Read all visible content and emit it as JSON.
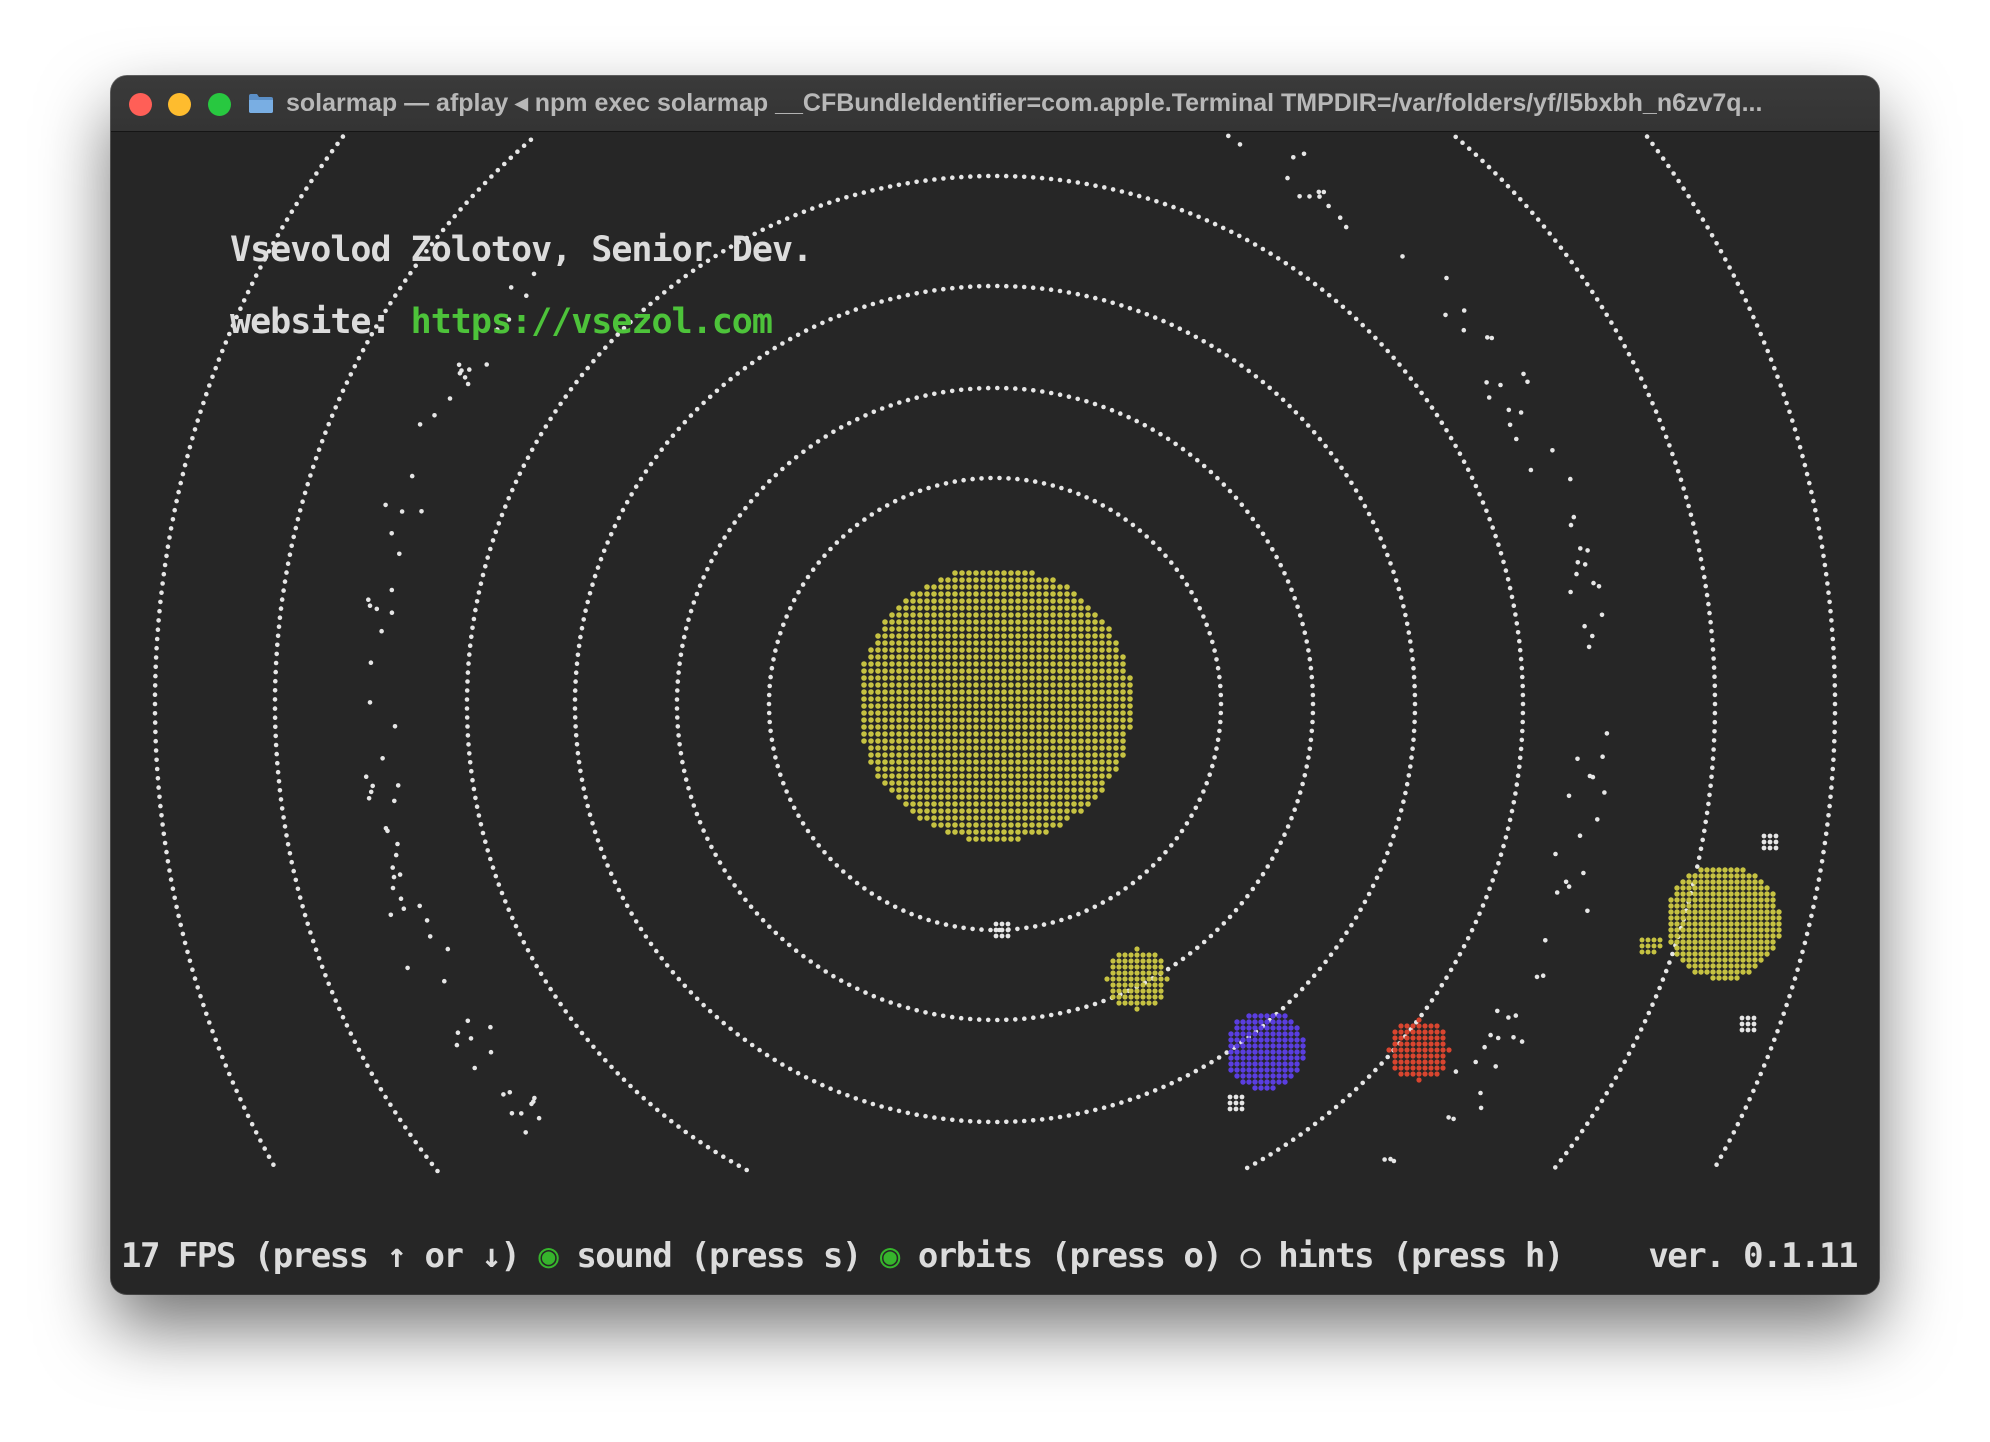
{
  "window": {
    "title": "solarmap — afplay ◂ npm exec solarmap __CFBundleIdentifier=com.apple.Terminal TMPDIR=/var/folders/yf/l5bxbh_n6zv7q..."
  },
  "credits": {
    "name": "Vsevolod Zolotov, Senior Dev.",
    "website_label": "website: ",
    "website_url": "https://vsezol.com"
  },
  "status": {
    "fps": "17 FPS (press ↑ or ↓)",
    "sound_indicator": "◉",
    "sound": "sound (press s)",
    "orbits_indicator": "◉",
    "orbits": "orbits (press o)",
    "hints_indicator": "○",
    "hints": "hints (press h)",
    "version": "ver. 0.1.11"
  },
  "colors": {
    "background": "#262626",
    "orbit": "#e6e6e6",
    "sun": "#c6c242",
    "planet_yellow": "#c6c242",
    "planet_blue": "#5a3ee0",
    "planet_red": "#d9452f",
    "link": "#4dc33a",
    "indicator_on": "#36b52c"
  },
  "icons": {
    "close": "close-button-icon",
    "minimize": "minimize-button-icon",
    "zoom": "zoom-button-icon",
    "folder": "folder-icon"
  }
}
